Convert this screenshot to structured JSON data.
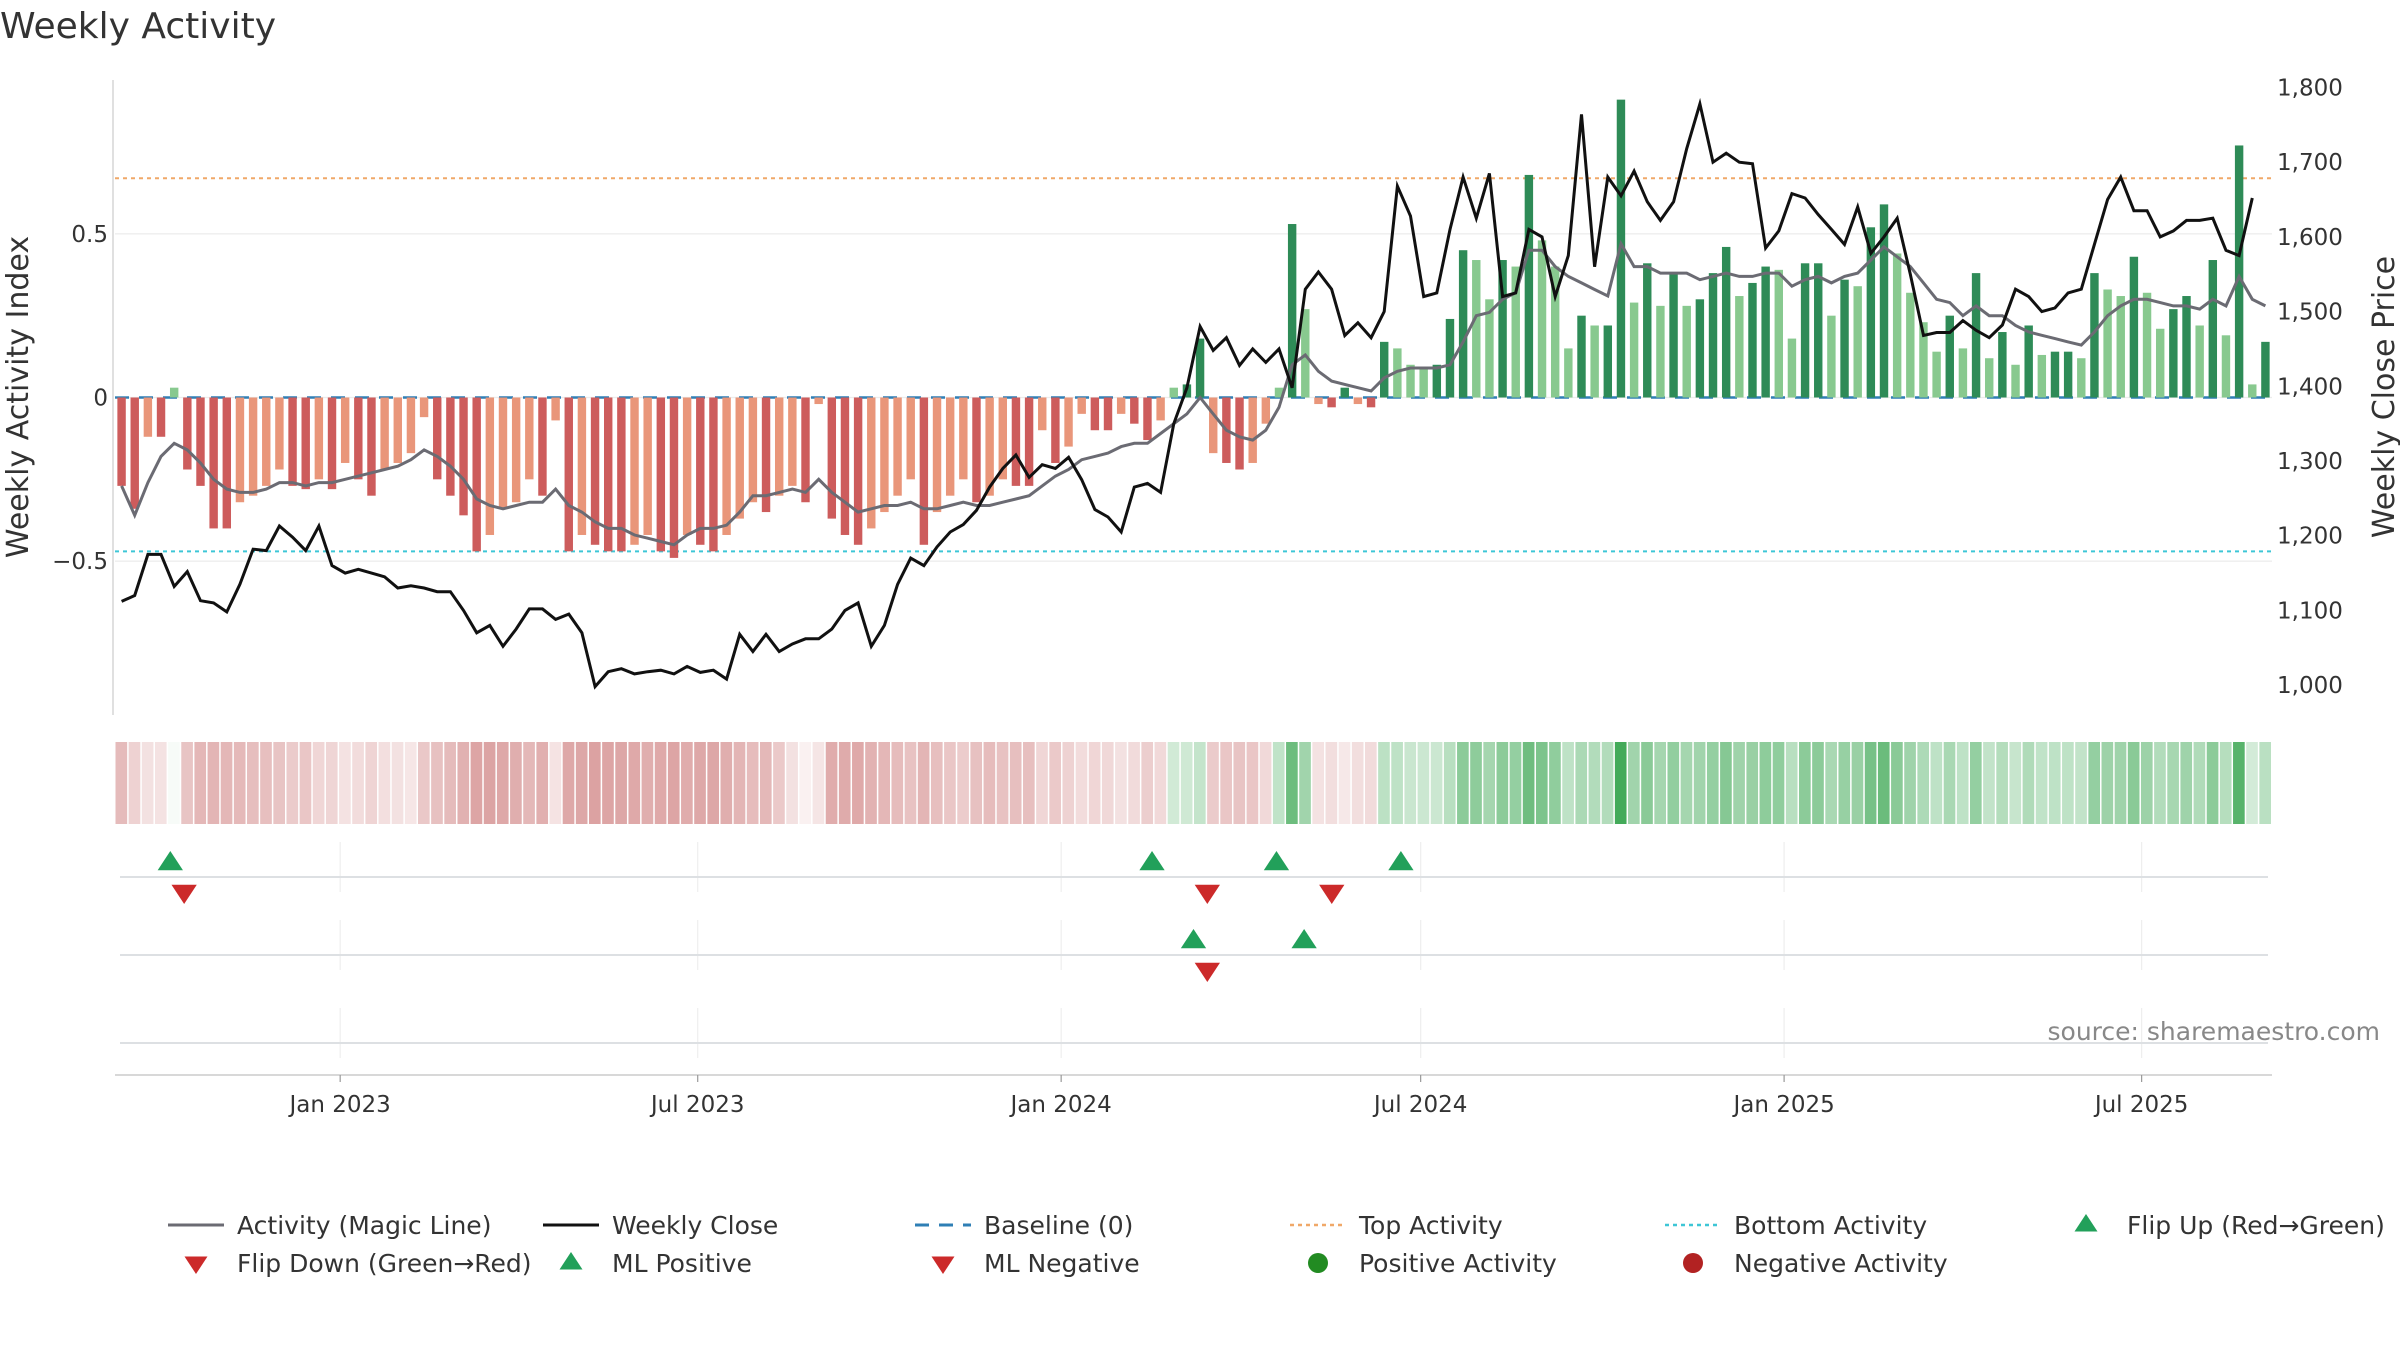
{
  "title": "Weekly Activity",
  "source": "source: sharemaestro.com",
  "colors": {
    "magic_line": "#6b6b73",
    "weekly_close": "#111111",
    "baseline": "#2f7fb5",
    "top_activity": "#f0a868",
    "bottom_activity": "#3ec6d6",
    "pos_strong": "#2e8b57",
    "pos_light": "#88c98f",
    "neg_strong": "#cd5c5c",
    "neg_light": "#e9967a",
    "marker_up": "#22a05a",
    "marker_down": "#cc2a2a",
    "dot_pos": "#228b22",
    "dot_neg": "#b22222"
  },
  "legend": [
    {
      "label": "Activity (Magic Line)",
      "symbol": "line",
      "color": "#6b6b73"
    },
    {
      "label": "Weekly Close",
      "symbol": "line",
      "color": "#111111"
    },
    {
      "label": "Baseline (0)",
      "symbol": "dash",
      "color": "#2f7fb5"
    },
    {
      "label": "Top Activity",
      "symbol": "dot-line",
      "color": "#f0a868"
    },
    {
      "label": "Bottom Activity",
      "symbol": "dot-line",
      "color": "#3ec6d6"
    },
    {
      "label": "Flip Up (Red→Green)",
      "symbol": "tri-up",
      "color": "#22a05a"
    },
    {
      "label": "Flip Down (Green→Red)",
      "symbol": "tri-down",
      "color": "#cc2a2a"
    },
    {
      "label": "ML Positive",
      "symbol": "tri-up",
      "color": "#22a05a"
    },
    {
      "label": "ML Negative",
      "symbol": "tri-down",
      "color": "#cc2a2a"
    },
    {
      "label": "Positive Activity",
      "symbol": "dot",
      "color": "#228b22"
    },
    {
      "label": "Negative Activity",
      "symbol": "dot",
      "color": "#b22222"
    }
  ],
  "chart_data": {
    "type": "bar",
    "title": "Weekly Activity",
    "ylabel_left": "Weekly Activity Index",
    "ylabel_right": "Weekly Close Price",
    "ylim_left": [
      -0.97,
      0.97
    ],
    "yticks_left": [
      {
        "v": 0.5,
        "label": "0.5"
      },
      {
        "v": 0,
        "label": "0"
      },
      {
        "v": -0.5,
        "label": "−0.5"
      }
    ],
    "ylim_right": [
      960,
      1810
    ],
    "yticks_right": [
      {
        "v": 1000,
        "label": "1,000"
      },
      {
        "v": 1100,
        "label": "1,100"
      },
      {
        "v": 1200,
        "label": "1,200"
      },
      {
        "v": 1300,
        "label": "1,300"
      },
      {
        "v": 1400,
        "label": "1,400"
      },
      {
        "v": 1500,
        "label": "1,500"
      },
      {
        "v": 1600,
        "label": "1,600"
      },
      {
        "v": 1700,
        "label": "1,700"
      },
      {
        "v": 1800,
        "label": "1,800"
      }
    ],
    "x_start": "2022-09-09",
    "x_end": "2025-09-05",
    "xticks": [
      {
        "date": "2023-01-01",
        "label": "Jan 2023"
      },
      {
        "date": "2023-07-01",
        "label": "Jul 2023"
      },
      {
        "date": "2024-01-01",
        "label": "Jan 2024"
      },
      {
        "date": "2024-07-01",
        "label": "Jul 2024"
      },
      {
        "date": "2025-01-01",
        "label": "Jan 2025"
      },
      {
        "date": "2025-07-01",
        "label": "Jul 2025"
      }
    ],
    "top_activity": 0.67,
    "bottom_activity": -0.47,
    "baseline": 0,
    "activity": [
      -0.27,
      -0.34,
      -0.12,
      -0.12,
      0.03,
      -0.22,
      -0.27,
      -0.4,
      -0.4,
      -0.32,
      -0.3,
      -0.27,
      -0.22,
      -0.27,
      -0.28,
      -0.25,
      -0.28,
      -0.2,
      -0.25,
      -0.3,
      -0.22,
      -0.2,
      -0.17,
      -0.06,
      -0.25,
      -0.3,
      -0.36,
      -0.47,
      -0.42,
      -0.34,
      -0.32,
      -0.25,
      -0.3,
      -0.07,
      -0.47,
      -0.42,
      -0.45,
      -0.47,
      -0.47,
      -0.45,
      -0.42,
      -0.47,
      -0.49,
      -0.42,
      -0.45,
      -0.47,
      -0.42,
      -0.37,
      -0.32,
      -0.35,
      -0.3,
      -0.27,
      -0.32,
      -0.02,
      -0.37,
      -0.42,
      -0.45,
      -0.4,
      -0.35,
      -0.3,
      -0.25,
      -0.45,
      -0.35,
      -0.3,
      -0.25,
      -0.32,
      -0.3,
      -0.25,
      -0.27,
      -0.27,
      -0.1,
      -0.2,
      -0.15,
      -0.05,
      -0.1,
      -0.1,
      -0.05,
      -0.08,
      -0.13,
      -0.07,
      0.03,
      0.04,
      0.18,
      -0.17,
      -0.2,
      -0.22,
      -0.2,
      -0.08,
      0.03,
      0.53,
      0.27,
      -0.02,
      -0.03,
      0.03,
      -0.02,
      -0.03,
      0.17,
      0.15,
      0.1,
      0.09,
      0.1,
      0.24,
      0.45,
      0.42,
      0.3,
      0.42,
      0.4,
      0.68,
      0.48,
      0.4,
      0.15,
      0.25,
      0.22,
      0.22,
      0.91,
      0.29,
      0.41,
      0.28,
      0.38,
      0.28,
      0.3,
      0.38,
      0.46,
      0.31,
      0.35,
      0.4,
      0.39,
      0.18,
      0.41,
      0.41,
      0.25,
      0.36,
      0.34,
      0.52,
      0.59,
      0.44,
      0.32,
      0.23,
      0.14,
      0.25,
      0.15,
      0.38,
      0.12,
      0.2,
      0.1,
      0.22,
      0.13,
      0.14,
      0.14,
      0.12,
      0.38,
      0.33,
      0.31,
      0.43,
      0.32,
      0.21,
      0.27,
      0.31,
      0.22,
      0.42,
      0.19,
      0.77,
      0.04,
      0.17
    ],
    "magic_line": [
      -0.27,
      -0.36,
      -0.26,
      -0.18,
      -0.14,
      -0.16,
      -0.2,
      -0.25,
      -0.28,
      -0.29,
      -0.29,
      -0.28,
      -0.26,
      -0.26,
      -0.27,
      -0.26,
      -0.26,
      -0.25,
      -0.24,
      -0.23,
      -0.22,
      -0.21,
      -0.19,
      -0.16,
      -0.18,
      -0.21,
      -0.25,
      -0.31,
      -0.33,
      -0.34,
      -0.33,
      -0.32,
      -0.32,
      -0.28,
      -0.33,
      -0.35,
      -0.38,
      -0.4,
      -0.4,
      -0.42,
      -0.43,
      -0.44,
      -0.45,
      -0.42,
      -0.4,
      -0.4,
      -0.39,
      -0.35,
      -0.3,
      -0.3,
      -0.29,
      -0.28,
      -0.29,
      -0.25,
      -0.29,
      -0.32,
      -0.35,
      -0.34,
      -0.33,
      -0.33,
      -0.32,
      -0.34,
      -0.34,
      -0.33,
      -0.32,
      -0.33,
      -0.33,
      -0.32,
      -0.31,
      -0.3,
      -0.27,
      -0.24,
      -0.22,
      -0.19,
      -0.18,
      -0.17,
      -0.15,
      -0.14,
      -0.14,
      -0.11,
      -0.08,
      -0.05,
      0,
      -0.05,
      -0.1,
      -0.12,
      -0.13,
      -0.1,
      -0.03,
      0.1,
      0.13,
      0.08,
      0.05,
      0.04,
      0.03,
      0.02,
      0.06,
      0.08,
      0.09,
      0.09,
      0.09,
      0.1,
      0.17,
      0.25,
      0.26,
      0.3,
      0.32,
      0.45,
      0.45,
      0.4,
      0.37,
      0.35,
      0.33,
      0.31,
      0.47,
      0.4,
      0.4,
      0.38,
      0.38,
      0.38,
      0.36,
      0.37,
      0.38,
      0.37,
      0.37,
      0.38,
      0.38,
      0.34,
      0.36,
      0.37,
      0.35,
      0.37,
      0.38,
      0.42,
      0.46,
      0.43,
      0.4,
      0.35,
      0.3,
      0.29,
      0.25,
      0.28,
      0.25,
      0.25,
      0.22,
      0.2,
      0.19,
      0.18,
      0.17,
      0.16,
      0.2,
      0.25,
      0.28,
      0.3,
      0.3,
      0.29,
      0.28,
      0.28,
      0.27,
      0.3,
      0.28,
      0.37,
      0.3,
      0.28
    ],
    "weekly_close": [
      1112,
      1120,
      1175,
      1175,
      1132,
      1152,
      1113,
      1110,
      1098,
      1135,
      1182,
      1180,
      1213,
      1198,
      1180,
      1213,
      1160,
      1150,
      1155,
      1150,
      1145,
      1130,
      1133,
      1130,
      1125,
      1125,
      1100,
      1070,
      1080,
      1052,
      1075,
      1102,
      1102,
      1088,
      1095,
      1070,
      998,
      1018,
      1022,
      1015,
      1018,
      1020,
      1015,
      1025,
      1017,
      1020,
      1008,
      1068,
      1045,
      1068,
      1045,
      1055,
      1062,
      1062,
      1075,
      1100,
      1110,
      1052,
      1080,
      1135,
      1170,
      1160,
      1185,
      1205,
      1215,
      1234,
      1265,
      1290,
      1308,
      1278,
      1295,
      1290,
      1305,
      1275,
      1235,
      1225,
      1205,
      1265,
      1270,
      1258,
      1350,
      1398,
      1480,
      1448,
      1465,
      1428,
      1450,
      1432,
      1450,
      1398,
      1530,
      1553,
      1530,
      1468,
      1485,
      1465,
      1500,
      1668,
      1628,
      1520,
      1525,
      1610,
      1680,
      1625,
      1685,
      1520,
      1525,
      1610,
      1600,
      1520,
      1575,
      1764,
      1560,
      1680,
      1655,
      1688,
      1647,
      1622,
      1647,
      1718,
      1778,
      1700,
      1712,
      1700,
      1698,
      1585,
      1608,
      1658,
      1652,
      1630,
      1610,
      1590,
      1640,
      1578,
      1600,
      1625,
      1550,
      1468,
      1472,
      1472,
      1488,
      1475,
      1465,
      1482,
      1530,
      1520,
      1500,
      1505,
      1525,
      1530,
      1590,
      1650,
      1680,
      1635,
      1635,
      1600,
      1608,
      1622,
      1622,
      1625,
      1582,
      1575,
      1652
    ],
    "heat_strip": [
      -0.47,
      -0.31,
      -0.21,
      -0.2,
      0.04,
      -0.41,
      -0.5,
      -0.51,
      -0.5,
      -0.48,
      -0.45,
      -0.44,
      -0.41,
      -0.36,
      -0.39,
      -0.28,
      -0.29,
      -0.2,
      -0.24,
      -0.3,
      -0.22,
      -0.21,
      -0.17,
      -0.38,
      -0.43,
      -0.47,
      -0.54,
      -0.62,
      -0.63,
      -0.6,
      -0.56,
      -0.49,
      -0.55,
      -0.19,
      -0.6,
      -0.61,
      -0.64,
      -0.62,
      -0.61,
      -0.59,
      -0.56,
      -0.59,
      -0.62,
      -0.57,
      -0.6,
      -0.61,
      -0.56,
      -0.51,
      -0.46,
      -0.49,
      -0.37,
      -0.21,
      -0.1,
      -0.18,
      -0.57,
      -0.58,
      -0.59,
      -0.53,
      -0.5,
      -0.46,
      -0.42,
      -0.51,
      -0.44,
      -0.39,
      -0.35,
      -0.43,
      -0.46,
      -0.42,
      -0.44,
      -0.44,
      -0.28,
      -0.37,
      -0.31,
      -0.24,
      -0.28,
      -0.27,
      -0.21,
      -0.25,
      -0.34,
      -0.26,
      0.22,
      0.23,
      0.28,
      -0.36,
      -0.39,
      -0.41,
      -0.39,
      -0.26,
      0.3,
      0.7,
      0.45,
      -0.2,
      -0.23,
      -0.16,
      -0.23,
      -0.25,
      0.32,
      0.31,
      0.26,
      0.25,
      0.25,
      0.34,
      0.55,
      0.54,
      0.43,
      0.55,
      0.51,
      0.69,
      0.62,
      0.53,
      0.31,
      0.4,
      0.37,
      0.37,
      0.9,
      0.45,
      0.56,
      0.43,
      0.52,
      0.43,
      0.45,
      0.51,
      0.58,
      0.46,
      0.49,
      0.54,
      0.53,
      0.34,
      0.55,
      0.55,
      0.41,
      0.5,
      0.49,
      0.65,
      0.71,
      0.56,
      0.46,
      0.39,
      0.31,
      0.41,
      0.31,
      0.51,
      0.29,
      0.36,
      0.27,
      0.38,
      0.3,
      0.31,
      0.31,
      0.29,
      0.51,
      0.47,
      0.46,
      0.56,
      0.47,
      0.37,
      0.42,
      0.46,
      0.38,
      0.55,
      0.35,
      0.8,
      0.21,
      0.33
    ],
    "flip_up": [
      "2022-10-07",
      "2024-02-16",
      "2024-04-19",
      "2024-06-21"
    ],
    "flip_down": [
      "2022-10-14",
      "2024-03-15",
      "2024-05-17"
    ],
    "ml_positive": [
      "2024-03-08",
      "2024-05-03"
    ],
    "ml_negative": [
      "2024-03-15"
    ],
    "positive_activity": [],
    "negative_activity": []
  }
}
